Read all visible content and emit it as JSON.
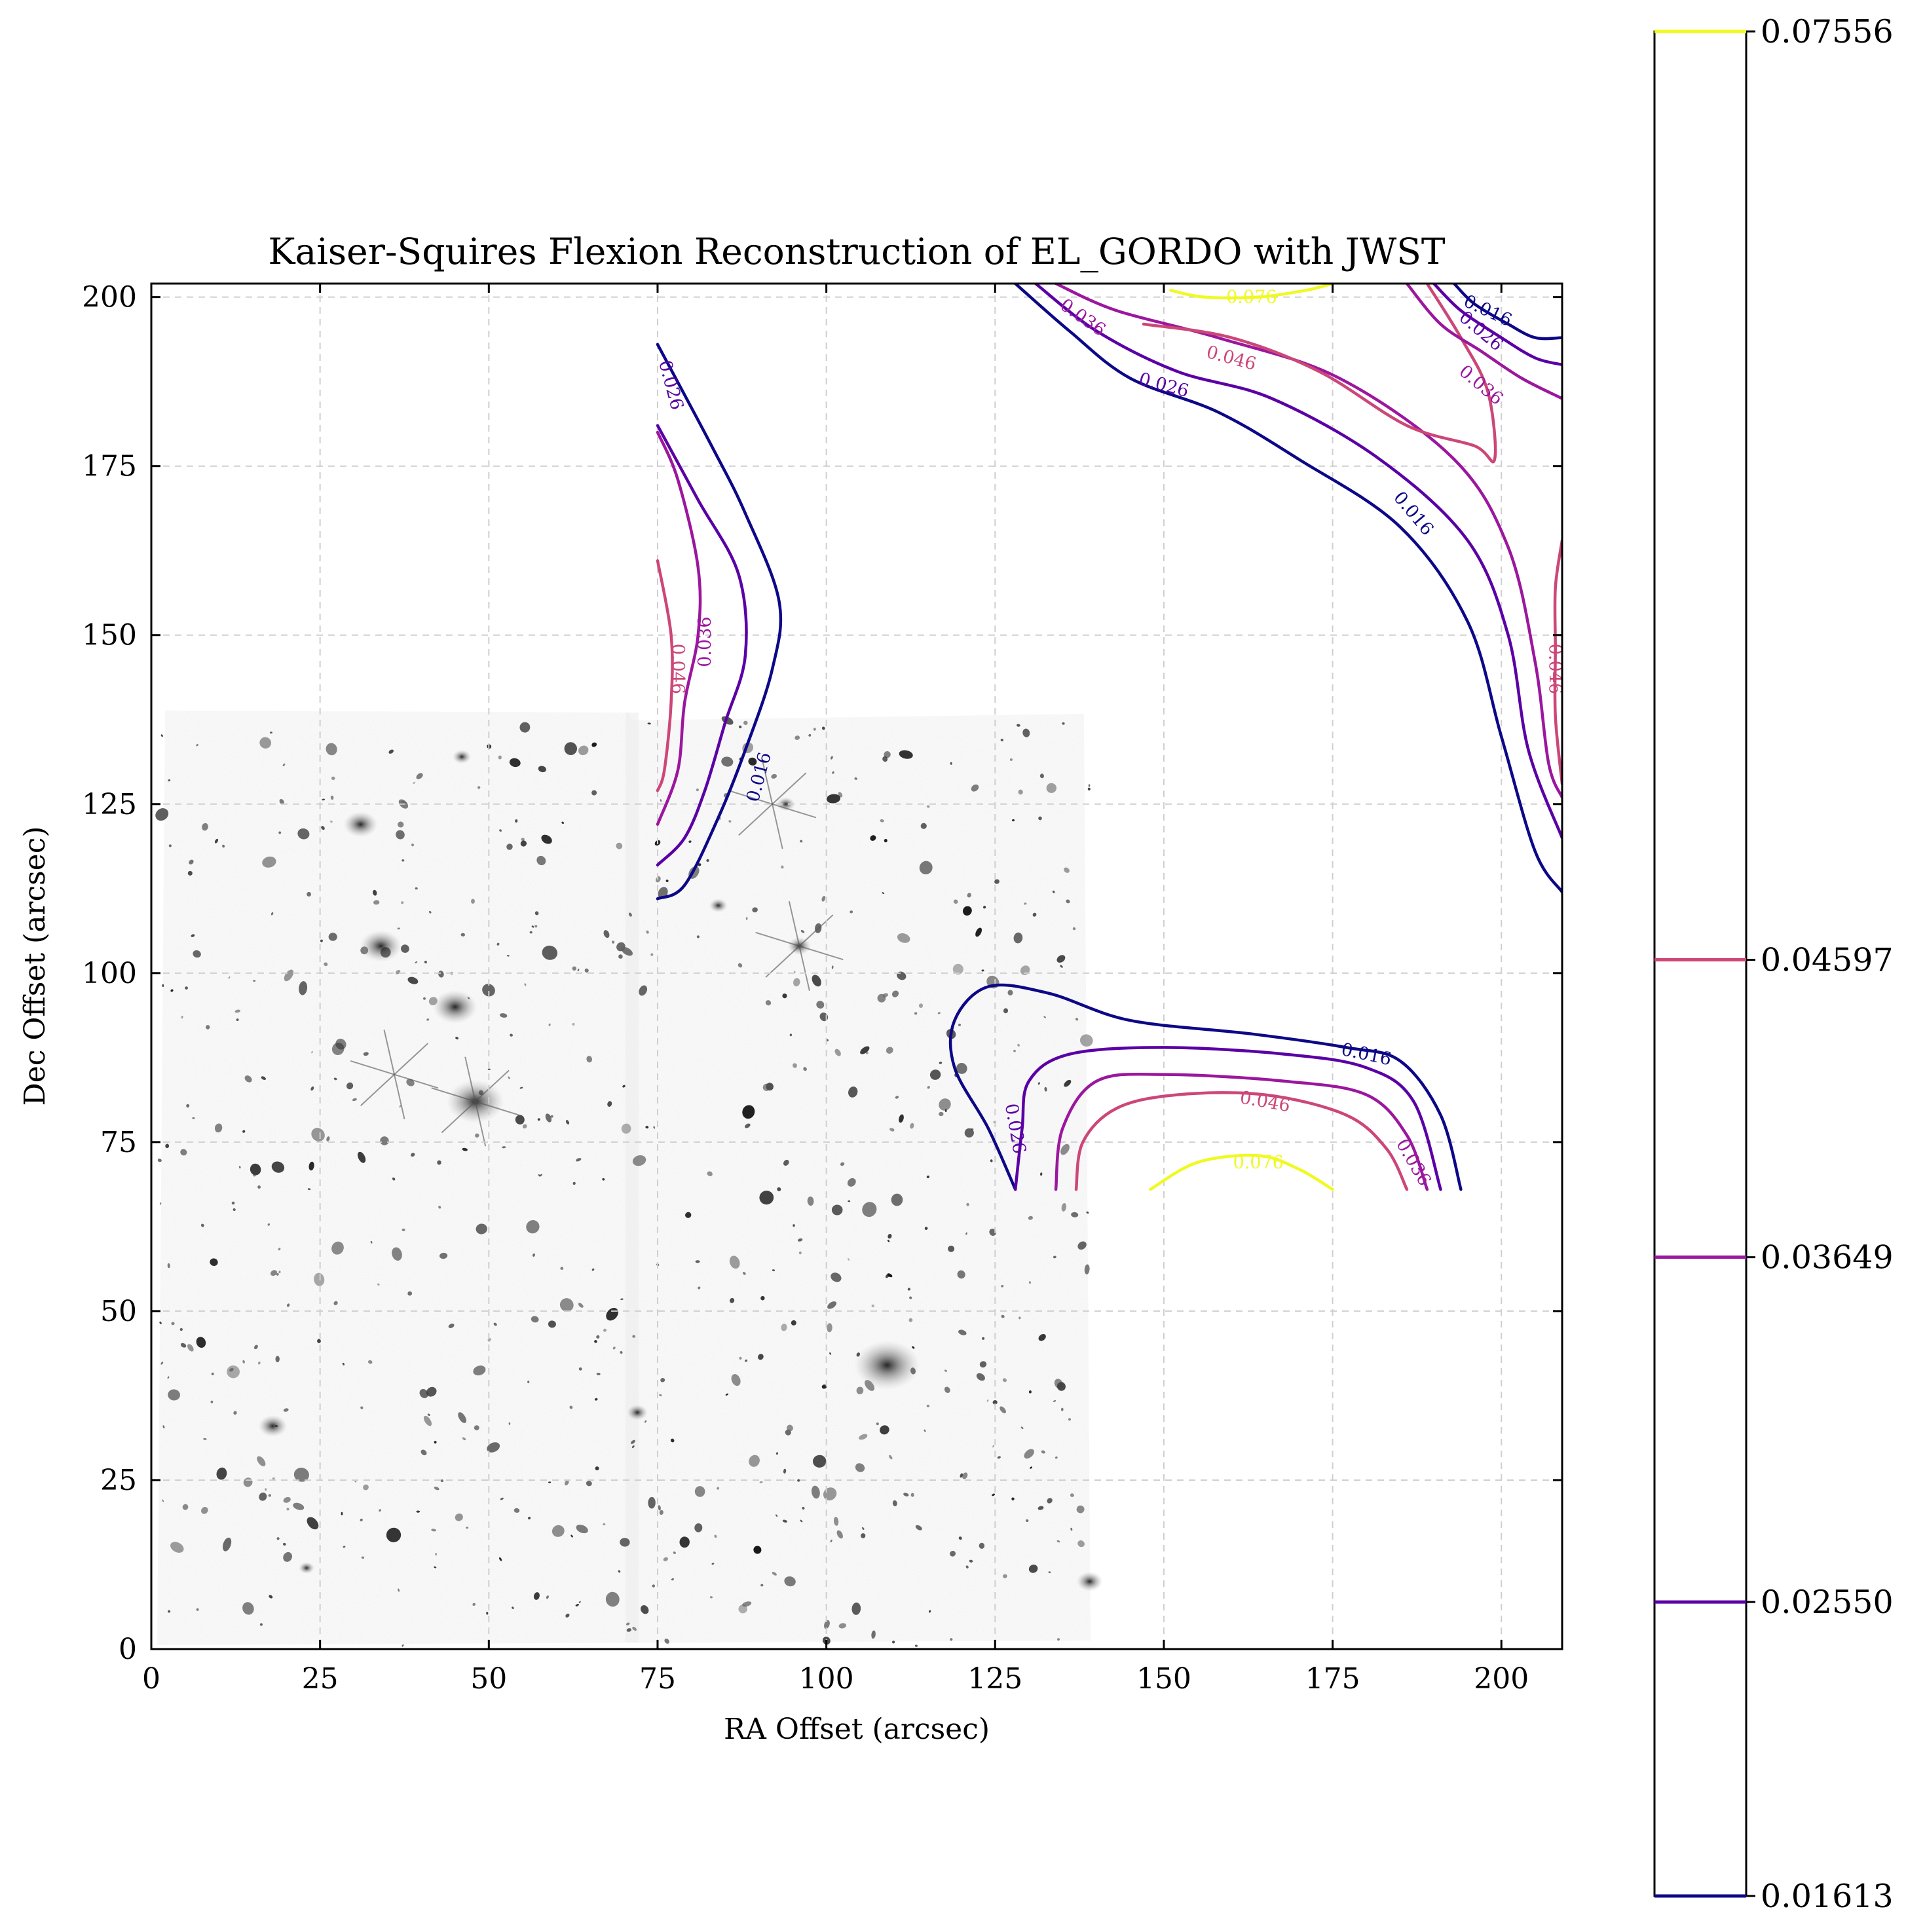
{
  "chart_data": {
    "type": "contour",
    "title": "Kaiser-Squires Flexion Reconstruction of EL_GORDO with JWST",
    "xlabel": "RA Offset (arcsec)",
    "ylabel": "Dec Offset (arcsec)",
    "xlim": [
      0,
      209
    ],
    "ylim": [
      0,
      202
    ],
    "xticks": [
      0,
      25,
      50,
      75,
      100,
      125,
      150,
      175,
      200
    ],
    "yticks": [
      0,
      25,
      50,
      75,
      100,
      125,
      150,
      175,
      200
    ],
    "grid": true,
    "background_image": "jwst-el-gordo-cluster-field-grayscale",
    "image_extent": {
      "x": [
        0,
        139
      ],
      "y": [
        0,
        138
      ]
    },
    "colorbar": {
      "ticks": [
        "0.01613",
        "0.02550",
        "0.03649",
        "0.04597",
        "0.07556"
      ],
      "levels": [
        0.01613,
        0.0255,
        0.03649,
        0.04597,
        0.07556
      ],
      "colors": [
        "#0d0887",
        "#5a00a5",
        "#9b179e",
        "#cc4778",
        "#f0f921"
      ]
    },
    "contours": [
      {
        "level": 0.016,
        "color": "#0d0887",
        "label": "0.016",
        "points": [
          [
            75,
            193
          ],
          [
            83,
            178
          ],
          [
            88,
            168
          ],
          [
            93,
            155
          ],
          [
            92,
            145
          ],
          [
            88,
            133
          ],
          [
            84,
            123
          ],
          [
            79,
            113
          ],
          [
            75,
            111
          ]
        ]
      },
      {
        "level": 0.026,
        "color": "#5a00a5",
        "label": "0.026",
        "points": [
          [
            75,
            181
          ],
          [
            81,
            170
          ],
          [
            87,
            159
          ],
          [
            88,
            147
          ],
          [
            85,
            137
          ],
          [
            82,
            127
          ],
          [
            79,
            120
          ],
          [
            75,
            116
          ]
        ]
      },
      {
        "level": 0.036,
        "color": "#9b179e",
        "label": "0.036",
        "points": [
          [
            75,
            180
          ],
          [
            78,
            173
          ],
          [
            81,
            160
          ],
          [
            81,
            150
          ],
          [
            79,
            140
          ],
          [
            78,
            130
          ],
          [
            75,
            122
          ]
        ]
      },
      {
        "level": 0.046,
        "color": "#cc4778",
        "label": "0.046",
        "points": [
          [
            75,
            161
          ],
          [
            77,
            150
          ],
          [
            77,
            140
          ],
          [
            76,
            130
          ],
          [
            75,
            127
          ]
        ]
      },
      {
        "level": 0.016,
        "color": "#0d0887",
        "label": "0.016",
        "points": [
          [
            128,
            202
          ],
          [
            136,
            195
          ],
          [
            145,
            188
          ],
          [
            158,
            183
          ],
          [
            170,
            176
          ],
          [
            185,
            166
          ],
          [
            195,
            152
          ],
          [
            200,
            135
          ],
          [
            205,
            118
          ],
          [
            209,
            112
          ]
        ]
      },
      {
        "level": 0.026,
        "color": "#5a00a5",
        "label": "0.026",
        "points": [
          [
            131,
            202
          ],
          [
            140,
            195
          ],
          [
            152,
            189
          ],
          [
            166,
            185
          ],
          [
            182,
            176
          ],
          [
            195,
            164
          ],
          [
            201,
            150
          ],
          [
            204,
            133
          ],
          [
            209,
            120
          ]
        ]
      },
      {
        "level": 0.036,
        "color": "#9b179e",
        "label": "0.036",
        "points": [
          [
            134,
            202
          ],
          [
            143,
            198
          ],
          [
            158,
            194
          ],
          [
            176,
            188
          ],
          [
            193,
            176
          ],
          [
            201,
            163
          ],
          [
            205,
            146
          ],
          [
            207,
            131
          ],
          [
            209,
            126
          ]
        ]
      },
      {
        "level": 0.046,
        "color": "#cc4778",
        "label": "0.046",
        "points": [
          [
            147,
            196
          ],
          [
            160,
            194
          ],
          [
            173,
            189
          ],
          [
            186,
            181
          ],
          [
            196,
            178
          ],
          [
            199,
            176
          ],
          [
            198,
            186
          ],
          [
            194,
            194
          ],
          [
            189,
            202
          ]
        ]
      },
      {
        "level": 0.046,
        "color": "#cc4778",
        "label": "0.046",
        "points": [
          [
            209,
            164
          ],
          [
            208,
            157
          ],
          [
            208,
            148
          ],
          [
            208,
            138
          ],
          [
            209,
            128
          ]
        ]
      },
      {
        "level": 0.036,
        "color": "#9b179e",
        "label": "0.036",
        "points": [
          [
            186,
            202
          ],
          [
            191,
            196
          ],
          [
            197,
            192
          ],
          [
            203,
            188
          ],
          [
            209,
            185
          ]
        ]
      },
      {
        "level": 0.026,
        "color": "#5a00a5",
        "label": "0.026",
        "points": [
          [
            190,
            202
          ],
          [
            194,
            198
          ],
          [
            200,
            194
          ],
          [
            205,
            191
          ],
          [
            209,
            190
          ]
        ]
      },
      {
        "level": 0.016,
        "color": "#0d0887",
        "label": "0.016",
        "points": [
          [
            193,
            202
          ],
          [
            196,
            199
          ],
          [
            201,
            196
          ],
          [
            205,
            194
          ],
          [
            209,
            194
          ]
        ]
      },
      {
        "level": 0.076,
        "color": "#f0f921",
        "label": "0.076",
        "points": [
          [
            151,
            201
          ],
          [
            156,
            200
          ],
          [
            164,
            200
          ],
          [
            171,
            201
          ],
          [
            175,
            202
          ]
        ]
      },
      {
        "level": 0.016,
        "color": "#0d0887",
        "label": "0.016",
        "points": [
          [
            128,
            68
          ],
          [
            124,
            77
          ],
          [
            119,
            86
          ],
          [
            119,
            93
          ],
          [
            124,
            98
          ],
          [
            133,
            97
          ],
          [
            145,
            93
          ],
          [
            163,
            91
          ],
          [
            177,
            89
          ],
          [
            185,
            87
          ],
          [
            191,
            79
          ],
          [
            194,
            68
          ]
        ]
      },
      {
        "level": 0.026,
        "color": "#5a00a5",
        "label": "0.026",
        "points": [
          [
            128,
            68
          ],
          [
            129,
            77
          ],
          [
            130,
            84
          ],
          [
            136,
            88
          ],
          [
            150,
            89
          ],
          [
            168,
            88
          ],
          [
            180,
            86
          ],
          [
            187,
            81
          ],
          [
            191,
            68
          ]
        ]
      },
      {
        "level": 0.036,
        "color": "#9b179e",
        "label": "0.036",
        "points": [
          [
            134,
            68
          ],
          [
            135,
            77
          ],
          [
            140,
            84
          ],
          [
            150,
            85
          ],
          [
            168,
            84
          ],
          [
            180,
            82
          ],
          [
            186,
            76
          ],
          [
            189,
            68
          ]
        ]
      },
      {
        "level": 0.046,
        "color": "#cc4778",
        "label": "0.046",
        "points": [
          [
            137,
            68
          ],
          [
            138,
            75
          ],
          [
            143,
            80
          ],
          [
            152,
            82
          ],
          [
            165,
            82
          ],
          [
            177,
            79
          ],
          [
            183,
            74
          ],
          [
            186,
            68
          ]
        ]
      },
      {
        "level": 0.076,
        "color": "#f0f921",
        "label": "0.076",
        "points": [
          [
            148,
            68
          ],
          [
            155,
            72
          ],
          [
            164,
            73
          ],
          [
            170,
            71
          ],
          [
            175,
            68
          ]
        ]
      }
    ],
    "contour_labels": [
      {
        "text": "0.026",
        "color": "#5a00a5",
        "x": 77,
        "y": 187,
        "rotate": 75
      },
      {
        "text": "0.036",
        "color": "#9b179e",
        "x": 82,
        "y": 149,
        "rotate": -90
      },
      {
        "text": "0.046",
        "color": "#cc4778",
        "x": 78,
        "y": 145,
        "rotate": 90
      },
      {
        "text": "0.016",
        "color": "#0d0887",
        "x": 90,
        "y": 129,
        "rotate": -75
      },
      {
        "text": "0.036",
        "color": "#9b179e",
        "x": 138,
        "y": 197,
        "rotate": 35
      },
      {
        "text": "0.076",
        "color": "#f0f921",
        "x": 163,
        "y": 200,
        "rotate": 0
      },
      {
        "text": "0.046",
        "color": "#cc4778",
        "x": 160,
        "y": 191,
        "rotate": 15
      },
      {
        "text": "0.026",
        "color": "#5a00a5",
        "x": 150,
        "y": 187,
        "rotate": 15
      },
      {
        "text": "0.016",
        "color": "#0d0887",
        "x": 187,
        "y": 168,
        "rotate": 50
      },
      {
        "text": "0.016",
        "color": "#0d0887",
        "x": 198,
        "y": 198,
        "rotate": 25
      },
      {
        "text": "0.026",
        "color": "#5a00a5",
        "x": 197,
        "y": 195,
        "rotate": 40
      },
      {
        "text": "0.036",
        "color": "#9b179e",
        "x": 197,
        "y": 187,
        "rotate": 40
      },
      {
        "text": "0.046",
        "color": "#cc4778",
        "x": 208,
        "y": 145,
        "rotate": 90
      },
      {
        "text": "0.016",
        "color": "#0d0887",
        "x": 180,
        "y": 88,
        "rotate": 12
      },
      {
        "text": "0.046",
        "color": "#cc4778",
        "x": 165,
        "y": 81,
        "rotate": 10
      },
      {
        "text": "0.036",
        "color": "#9b179e",
        "x": 187,
        "y": 72,
        "rotate": 60
      },
      {
        "text": "0.026",
        "color": "#5a00a5",
        "x": 128,
        "y": 77,
        "rotate": 80
      },
      {
        "text": "0.076",
        "color": "#f0f921",
        "x": 164,
        "y": 72,
        "rotate": 0
      }
    ]
  }
}
